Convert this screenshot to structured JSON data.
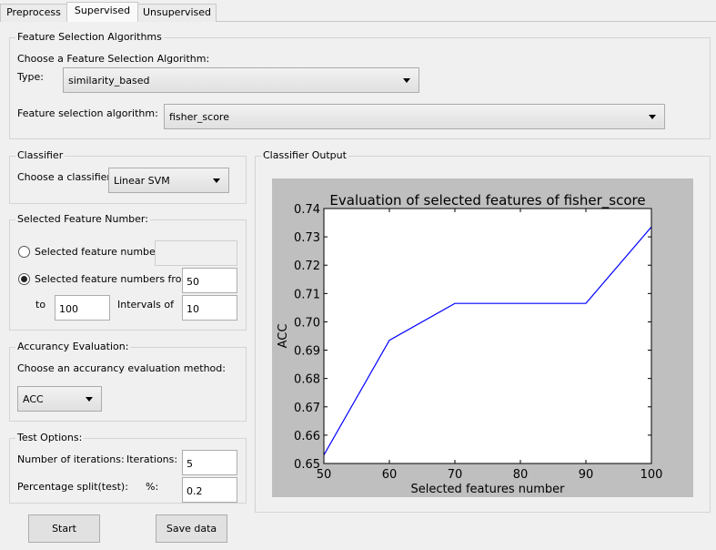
{
  "tabs": [
    {
      "label": "Preprocess"
    },
    {
      "label": "Supervised"
    },
    {
      "label": "Unsupervised"
    }
  ],
  "feature_selection": {
    "title": "Feature Selection Algorithms",
    "choose_label": "Choose a Feature Selection Algorithm:",
    "type_label": "Type:",
    "type_value": "similarity_based",
    "algorithm_label": "Feature selection algorithm:",
    "algorithm_value": "fisher_score"
  },
  "classifier": {
    "title": "Classifier",
    "choose_label": "Choose a classifier:",
    "value": "Linear SVM"
  },
  "feature_number": {
    "title": "Selected Feature Number:",
    "option_single": "Selected feature numbers:",
    "single_value": "",
    "option_range": "Selected feature numbers from",
    "from_value": "50",
    "to_label": "to",
    "to_value": "100",
    "interval_label": "Intervals of",
    "interval_value": "10"
  },
  "evaluation": {
    "title": "Accurancy Evaluation:",
    "choose_label": "Choose an accurancy evaluation method:",
    "value": "ACC"
  },
  "test_options": {
    "title": "Test Options:",
    "iterations_label": "Number of iterations:",
    "iterations_sub": "Iterations:",
    "iterations_value": "5",
    "split_label": "Percentage split(test):",
    "split_sub": "%:",
    "split_value": "0.2"
  },
  "buttons": {
    "start": "Start",
    "save": "Save data"
  },
  "output": {
    "title": "Classifier Output"
  },
  "chart_data": {
    "type": "line",
    "title": "Evaluation of selected features of fisher_score",
    "xlabel": "Selected features number",
    "ylabel": "ACC",
    "xlim": [
      50,
      100
    ],
    "ylim": [
      0.65,
      0.74
    ],
    "xticks": [
      50,
      60,
      70,
      80,
      90,
      100
    ],
    "yticks": [
      0.65,
      0.66,
      0.67,
      0.68,
      0.69,
      0.7,
      0.71,
      0.72,
      0.73,
      0.74
    ],
    "ytick_labels": [
      "0.65",
      "0.66",
      "0.67",
      "0.68",
      "0.69",
      "0.70",
      "0.71",
      "0.72",
      "0.73",
      "0.74"
    ],
    "x": [
      50,
      60,
      70,
      80,
      90,
      100
    ],
    "y": [
      0.653,
      0.6935,
      0.7065,
      0.7065,
      0.7065,
      0.7335
    ],
    "color": "#0000ff",
    "grid": false
  }
}
